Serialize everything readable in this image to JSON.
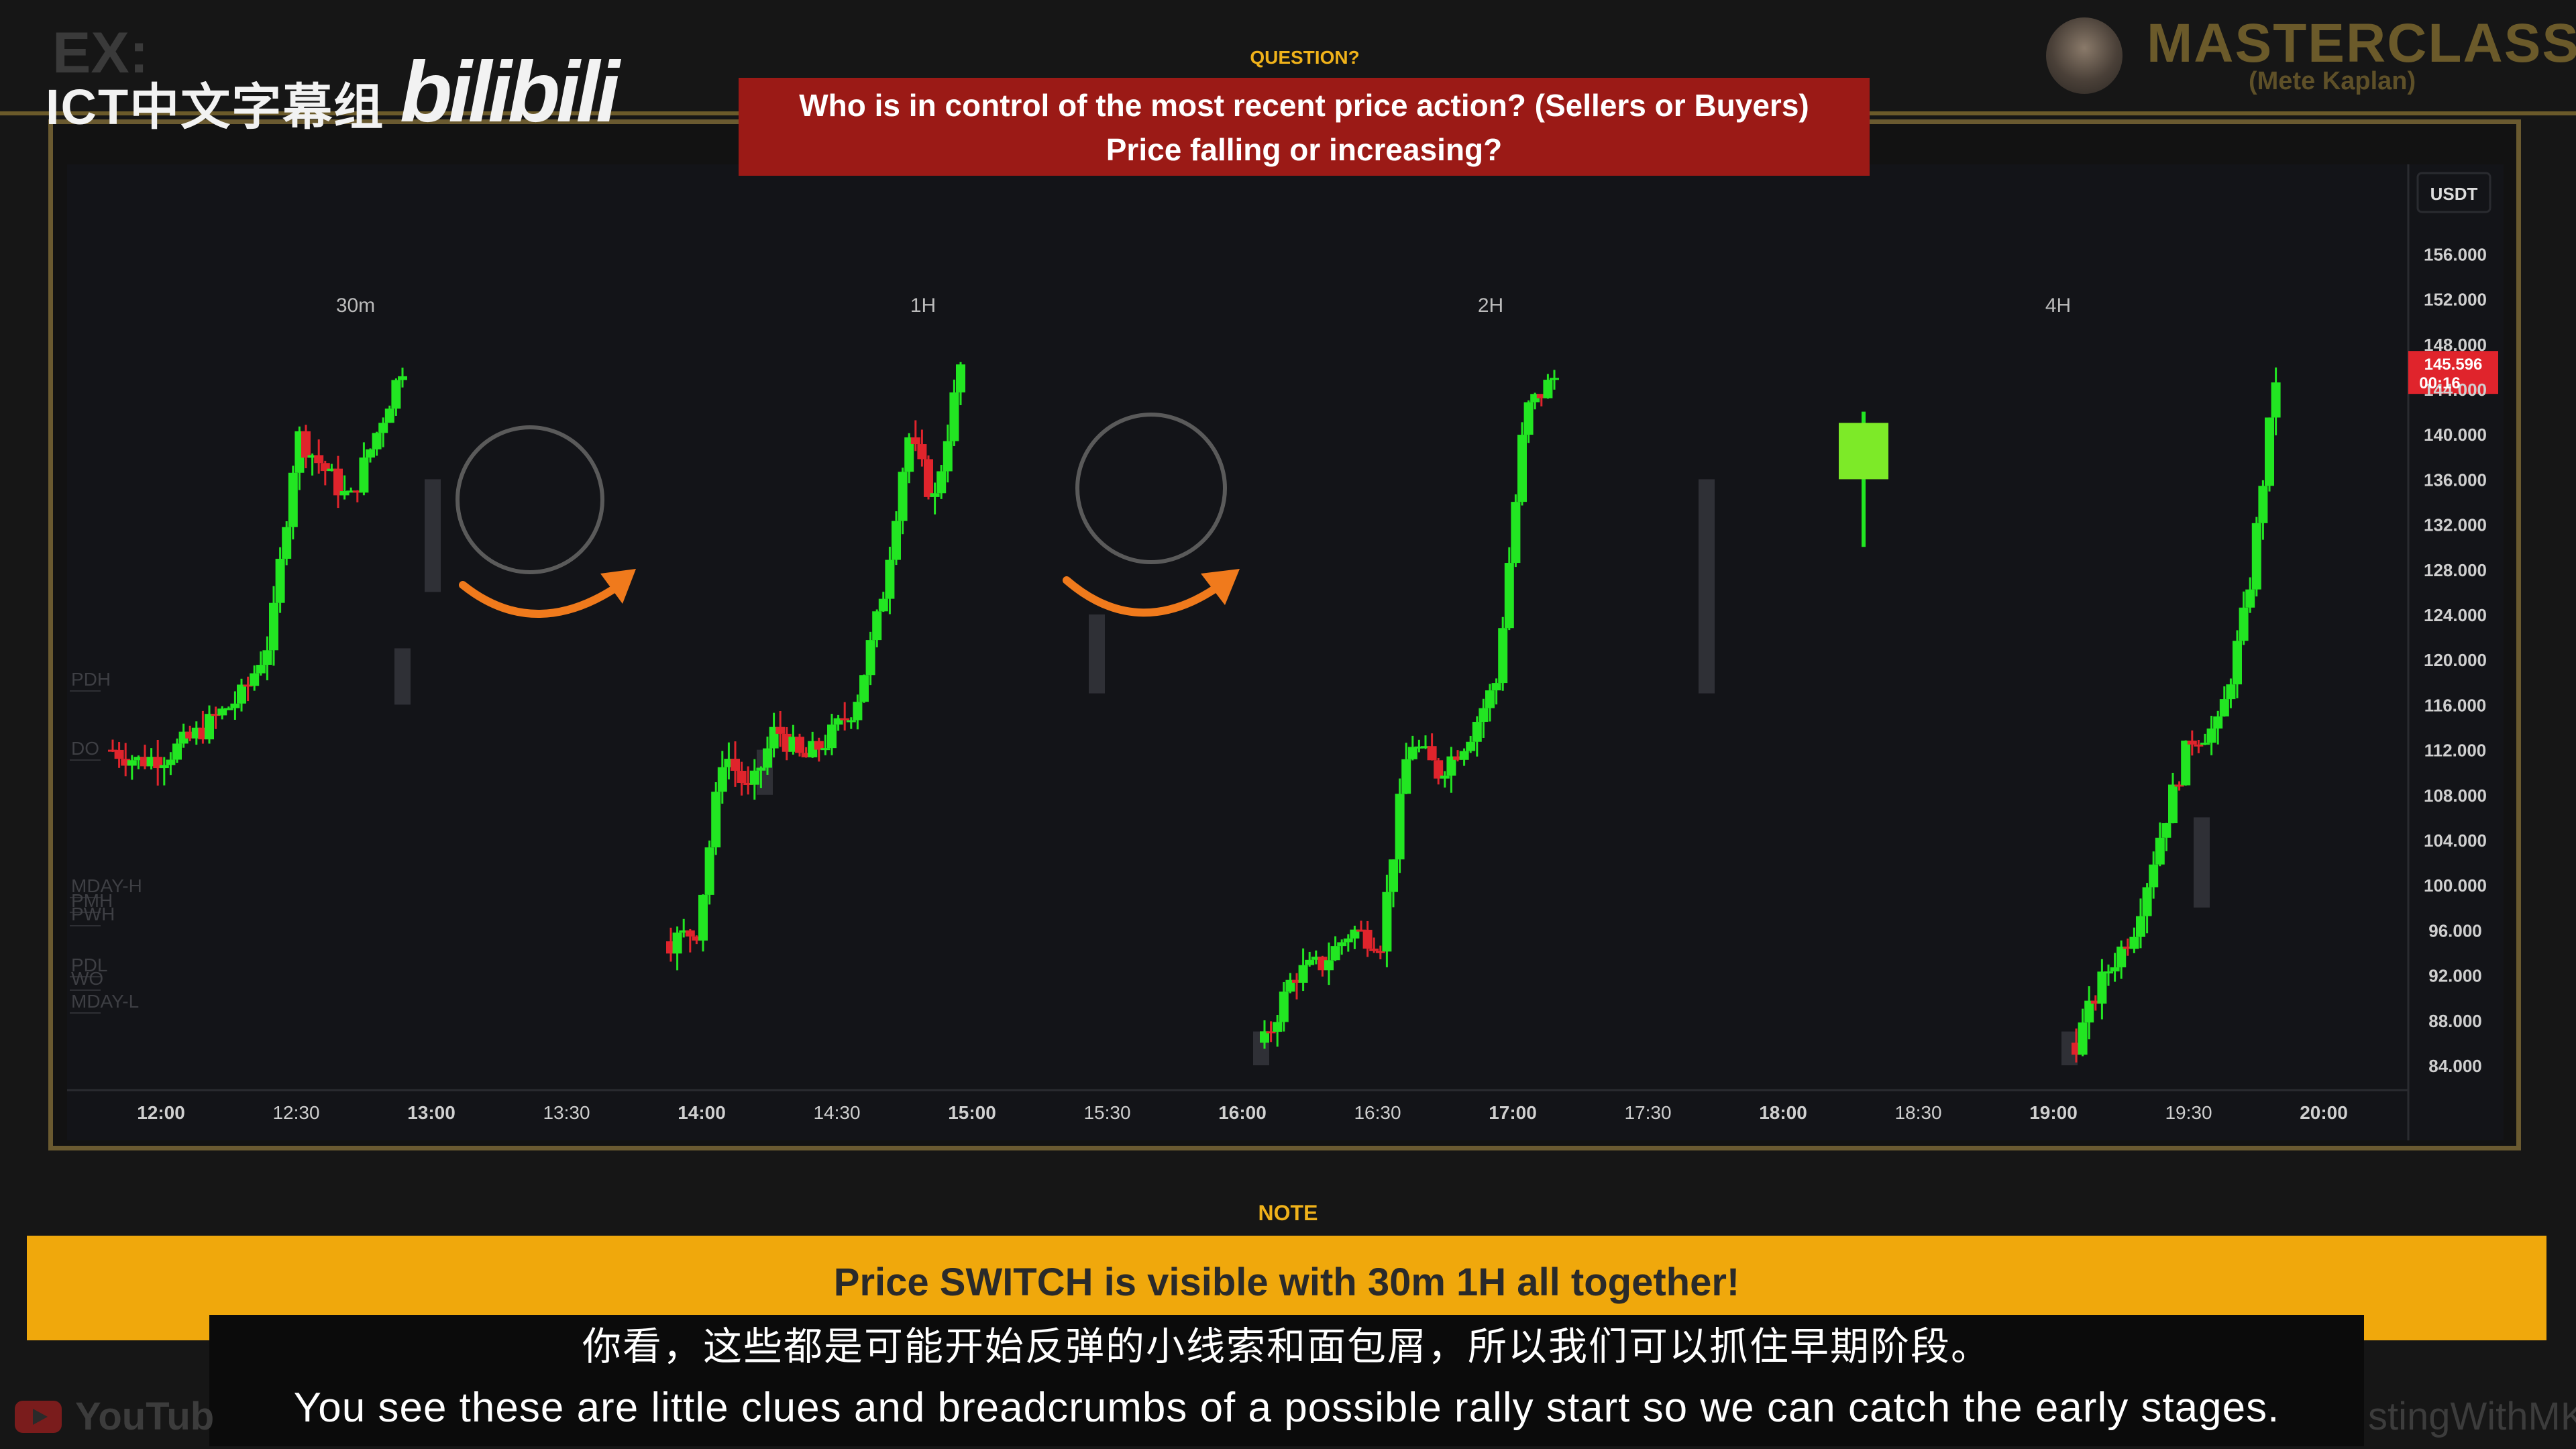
{
  "watermark": {
    "ex": "EX:",
    "ict": "ICT中文字幕组",
    "bili": "bilibili"
  },
  "question": {
    "label": "QUESTION?",
    "line1": "Who is in control of the most recent price action? (Sellers or Buyers)",
    "line2": "Price falling or increasing?"
  },
  "brand": {
    "title": "MASTERCLASS",
    "subtitle": "(Mete Kaplan)"
  },
  "chart": {
    "currency": "USDT",
    "timeframes": [
      "30m",
      "1H",
      "2H",
      "4H"
    ],
    "price_ticks": [
      "156.000",
      "152.000",
      "148.000",
      "144.000",
      "140.000",
      "136.000",
      "132.000",
      "128.000",
      "124.000",
      "120.000",
      "116.000",
      "112.000",
      "108.000",
      "104.000",
      "100.000",
      "96.000",
      "92.000",
      "88.000",
      "84.000"
    ],
    "current_price": "145.596",
    "countdown": "00:16",
    "time_ticks": [
      "12:00",
      "12:30",
      "13:00",
      "13:30",
      "14:00",
      "14:30",
      "15:00",
      "15:30",
      "16:00",
      "16:30",
      "17:00",
      "17:30",
      "18:00",
      "18:30",
      "19:00",
      "19:30",
      "20:00"
    ],
    "level_labels": [
      "PDH",
      "DO",
      "MDAY-H",
      "PMH",
      "PWH",
      "PDL",
      "WO",
      "MDAY-L"
    ],
    "colors": {
      "up": "#22e622",
      "down": "#e0242c",
      "accent": "#f07a1c"
    }
  },
  "note": {
    "label": "NOTE",
    "text": "Price SWITCH is visible with 30m 1H all together!"
  },
  "subtitles": {
    "cn": "你看，这些都是可能开始反弹的小线索和面包屑，所以我们可以抓住早期阶段。",
    "en": "You see these are little clues and breadcrumbs of a possible rally start so we can catch the early stages."
  },
  "footer": {
    "youtube": "YouTub",
    "channel": "stingWithMK"
  }
}
